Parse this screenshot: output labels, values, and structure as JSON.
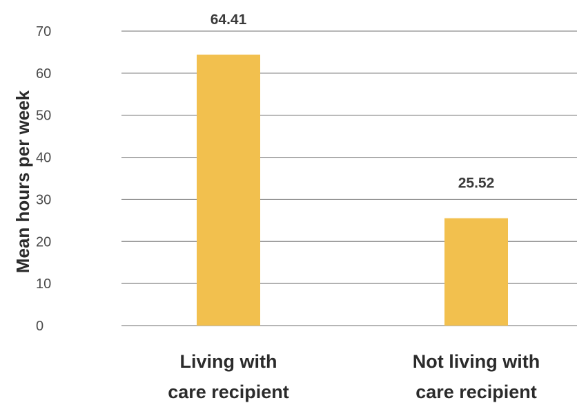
{
  "chart_data": {
    "type": "bar",
    "categories": [
      [
        "Living with",
        "care recipient"
      ],
      [
        "Not living with",
        "care recipient"
      ]
    ],
    "values": [
      64.41,
      25.52
    ],
    "value_labels": [
      "64.41",
      "25.52"
    ],
    "ylabel": "Mean hours per week",
    "ylim": [
      0,
      70
    ],
    "yticks": [
      0,
      10,
      20,
      30,
      40,
      50,
      60,
      70
    ],
    "grid": true,
    "bar_color": "#F2C04E"
  }
}
